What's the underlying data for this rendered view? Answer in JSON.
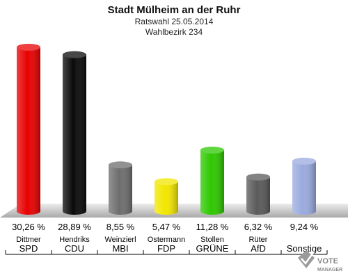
{
  "chart_data": {
    "type": "bar",
    "title": "Stadt Mülheim an der Ruhr",
    "subtitle_1": "Ratswahl 25.05.2014",
    "subtitle_2": "Wahlbezirk 234",
    "ylim": [
      0,
      32
    ],
    "categories": [
      {
        "candidate": "Dittmer",
        "party": "SPD",
        "value": 30.26,
        "label": "30,26 %",
        "color": "#e80000"
      },
      {
        "candidate": "Hendriks",
        "party": "CDU",
        "value": 28.89,
        "label": "28,89 %",
        "color": "#0a0a0a"
      },
      {
        "candidate": "Weinzierl",
        "party": "MBI",
        "value": 8.55,
        "label": "8,55 %",
        "color": "#6e6e6e"
      },
      {
        "candidate": "Ostermann",
        "party": "FDP",
        "value": 5.47,
        "label": "5,47 %",
        "color": "#f2e600"
      },
      {
        "candidate": "Stollen",
        "party": "GRÜNE",
        "value": 11.28,
        "label": "11,28 %",
        "color": "#2ec800"
      },
      {
        "candidate": "Rüter",
        "party": "AfD",
        "value": 6.32,
        "label": "6,32 %",
        "color": "#5a5a5a"
      },
      {
        "candidate": "",
        "party": "Sonstige",
        "value": 9.24,
        "label": "9,24 %",
        "color": "#9aaade"
      }
    ]
  },
  "watermark": {
    "line1": "VOTE",
    "line2": "MANAGER",
    "icon": "vote-manager-logo-icon"
  }
}
